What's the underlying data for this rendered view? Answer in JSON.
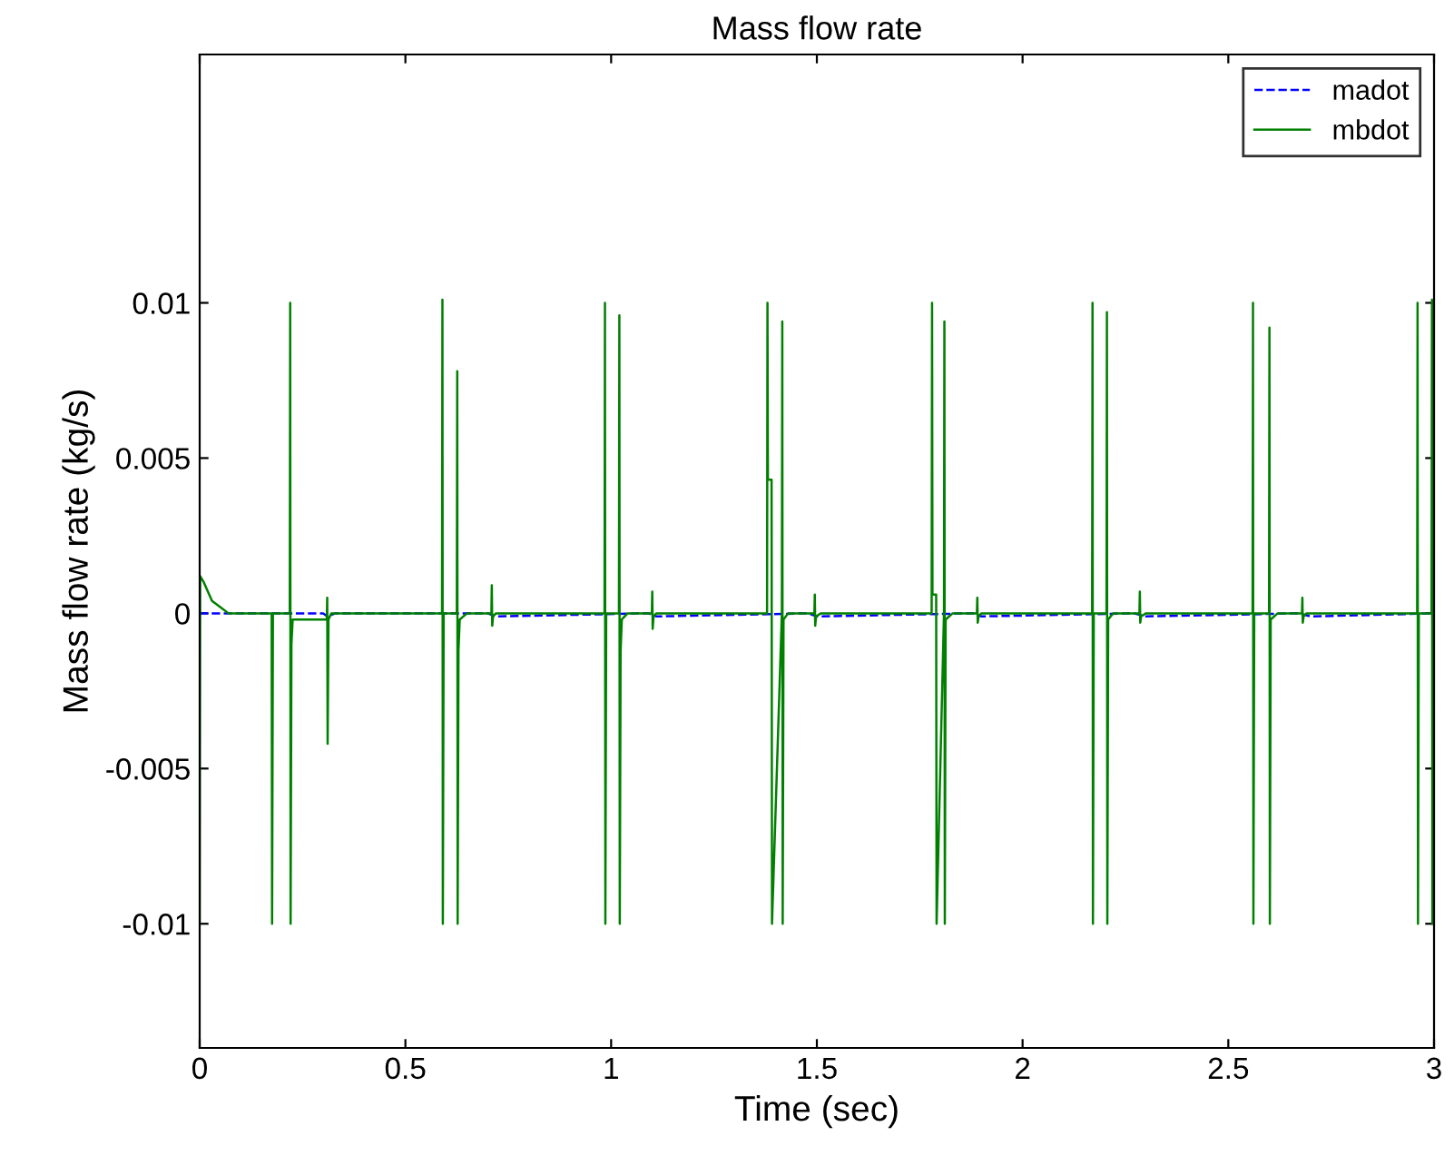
{
  "chart_data": {
    "type": "line",
    "title": "Mass flow rate",
    "xlabel": "Time (sec)",
    "ylabel": "Mass flow rate (kg/s)",
    "xlim": [
      0,
      3
    ],
    "xticks": [
      0,
      0.5,
      1,
      1.5,
      2,
      2.5,
      3
    ],
    "ylim": [
      -0.014,
      0.018
    ],
    "yticks": [
      -0.01,
      -0.005,
      0,
      0.005,
      0.01
    ],
    "grid": false,
    "legend": "top right",
    "marker": "none",
    "series": [
      {
        "name": "madot",
        "color": "#0000ff",
        "line_style": "dashed",
        "x": [
          0,
          0.3,
          0.31,
          0.33,
          0.7,
          0.72,
          1.09,
          1.11,
          1.48,
          1.5,
          1.88,
          1.9,
          2.27,
          2.3,
          2.67,
          2.7,
          3
        ],
        "values": [
          0,
          0,
          -0.0001,
          0,
          0,
          -0.0001,
          0,
          -0.0001,
          0,
          -0.0001,
          0,
          -0.0001,
          0,
          -0.0001,
          0,
          -0.0001,
          0
        ]
      },
      {
        "name": "mbdot",
        "color": "#008000",
        "line_style": "solid",
        "x": [
          0,
          0.001,
          0.01,
          0.03,
          0.05,
          0.07,
          0.175,
          0.176,
          0.178,
          0.219,
          0.22,
          0.221,
          0.223,
          0.226,
          0.24,
          0.309,
          0.31,
          0.311,
          0.313,
          0.32,
          0.589,
          0.59,
          0.591,
          0.593,
          0.625,
          0.626,
          0.627,
          0.629,
          0.632,
          0.65,
          0.709,
          0.71,
          0.711,
          0.713,
          0.72,
          0.984,
          0.985,
          0.986,
          0.988,
          1.019,
          1.02,
          1.021,
          1.023,
          1.026,
          1.04,
          1.099,
          1.1,
          1.101,
          1.103,
          1.11,
          1.379,
          1.38,
          1.381,
          1.39,
          1.391,
          1.415,
          1.416,
          1.417,
          1.419,
          1.43,
          1.494,
          1.495,
          1.496,
          1.498,
          1.51,
          1.779,
          1.78,
          1.781,
          1.79,
          1.791,
          1.809,
          1.81,
          1.811,
          1.813,
          1.83,
          1.889,
          1.89,
          1.891,
          1.893,
          1.9,
          2.169,
          2.17,
          2.171,
          2.173,
          2.204,
          2.205,
          2.206,
          2.208,
          2.22,
          2.284,
          2.285,
          2.286,
          2.288,
          2.3,
          2.559,
          2.56,
          2.561,
          2.563,
          2.599,
          2.6,
          2.601,
          2.603,
          2.62,
          2.679,
          2.68,
          2.681,
          2.683,
          2.69,
          2.959,
          2.96,
          2.961,
          2.963,
          2.994,
          2.995,
          2.996,
          2.998
        ],
        "values": [
          -0.01,
          0.0012,
          0.001,
          0.0004,
          0.0002,
          0,
          0,
          -0.01,
          0,
          0,
          0.01,
          -0.01,
          -0.001,
          -0.0002,
          -0.0002,
          -0.0002,
          0.0005,
          -0.0042,
          -0.0002,
          0,
          0,
          0.0101,
          -0.01,
          0,
          0,
          0.0078,
          -0.01,
          -0.0012,
          -0.0002,
          0,
          0,
          0.0009,
          -0.0004,
          -0.0001,
          0,
          0,
          0.01,
          -0.01,
          0,
          0,
          0.0096,
          -0.01,
          -0.0012,
          -0.0002,
          0,
          0,
          0.0007,
          -0.0005,
          -0.0001,
          0,
          0,
          0.01,
          0.0043,
          0.0043,
          -0.01,
          0,
          0.0094,
          -0.01,
          -0.0002,
          0,
          0,
          0.0006,
          -0.0004,
          -0.0001,
          0,
          0,
          0.01,
          0.0006,
          0.0006,
          -0.01,
          0,
          0.0094,
          -0.01,
          -0.0002,
          0,
          0,
          0.0005,
          -0.0003,
          -0.0001,
          0,
          0,
          0.01,
          -0.01,
          0,
          0,
          0.0097,
          -0.01,
          -0.0002,
          0,
          0,
          0.0007,
          -0.0003,
          -0.0001,
          0,
          0,
          0.01,
          -0.01,
          0,
          0,
          0.0092,
          -0.01,
          -0.0002,
          0,
          0,
          0.0005,
          -0.0003,
          -0.0001,
          0,
          0,
          0.01,
          -0.01,
          0,
          0,
          0.0101,
          -0.01,
          0
        ]
      }
    ]
  }
}
